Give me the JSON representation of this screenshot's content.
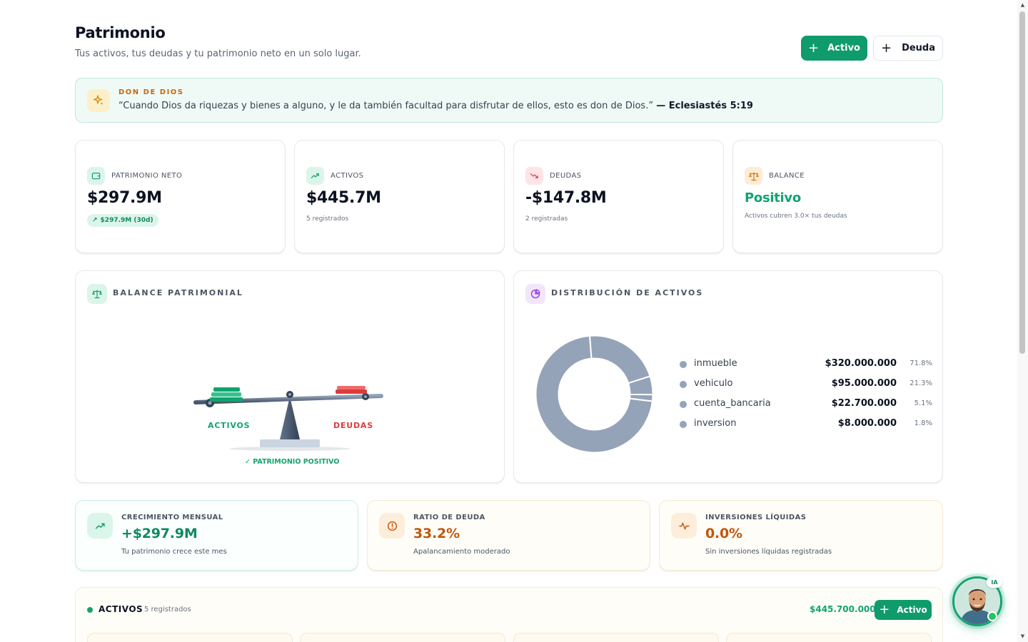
{
  "header": {
    "title": "Patrimonio",
    "subtitle": "Tus activos, tus deudas y tu patrimonio neto en un solo lugar.",
    "add_asset_label": "Activo",
    "add_debt_label": "Deuda"
  },
  "verse": {
    "kicker": "DON DE DIOS",
    "text": "“Cuando Dios da riquezas y bienes a alguno, y le da también facultad para disfrutar de ellos, esto es don de Dios.”",
    "reference": "— Eclesiastés 5:19"
  },
  "stats": {
    "net_worth": {
      "label": "PATRIMONIO NETO",
      "value": "$297.9M",
      "change": "$297.9M (30d)"
    },
    "assets": {
      "label": "ACTIVOS",
      "value": "$445.7M",
      "sub": "5 registrados"
    },
    "debts": {
      "label": "DEUDAS",
      "value": "-$147.8M",
      "sub": "2 registradas"
    },
    "balance": {
      "label": "BALANCE",
      "value": "Positivo",
      "sub": "Activos cubren 3.0× tus deudas"
    }
  },
  "balance_card": {
    "title": "BALANCE PATRIMONIAL",
    "assets_label": "ACTIVOS",
    "debts_label": "DEUDAS",
    "status": "✓ PATRIMONIO POSITIVO"
  },
  "distribution": {
    "title": "DISTRIBUCIÓN DE ACTIVOS",
    "color": "#94a3b8",
    "items": [
      {
        "name": "inmueble",
        "value": "$320.000.000",
        "pct": "71.8%",
        "share": 71.8
      },
      {
        "name": "vehiculo",
        "value": "$95.000.000",
        "pct": "21.3%",
        "share": 21.3
      },
      {
        "name": "cuenta_bancaria",
        "value": "$22.700.000",
        "pct": "5.1%",
        "share": 5.1
      },
      {
        "name": "inversion",
        "value": "$8.000.000",
        "pct": "1.8%",
        "share": 1.8
      }
    ]
  },
  "metrics": {
    "growth": {
      "label": "CRECIMIENTO MENSUAL",
      "value": "+$297.9M",
      "sub": "Tu patrimonio crece este mes"
    },
    "debt_ratio": {
      "label": "RATIO DE DEUDA",
      "value": "33.2%",
      "sub": "Apalancamiento moderado"
    },
    "liquid": {
      "label": "INVERSIONES LÍQUIDAS",
      "value": "0.0%",
      "sub": "Sin inversiones líquidas registradas"
    }
  },
  "assets_section": {
    "title": "ACTIVOS",
    "count": "5 registrados",
    "total": "$445.700.000",
    "add_label": "Activo"
  },
  "assistant": {
    "badge": "IA"
  },
  "colors": {
    "primary": "#0f9b6b",
    "positive": "#12a46f",
    "negative": "#dc3b3b",
    "warning": "#c2570c"
  }
}
